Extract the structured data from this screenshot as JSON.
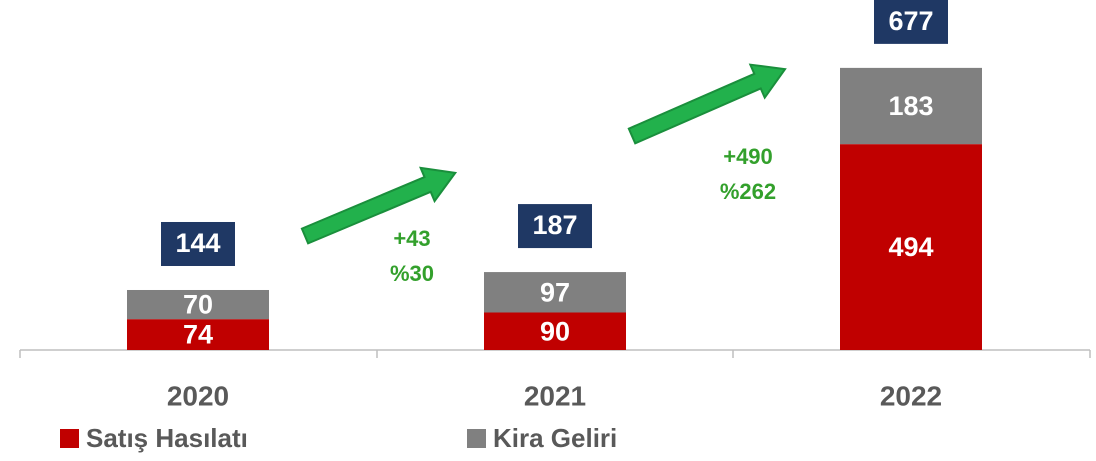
{
  "chart_data": {
    "type": "stacked_bar",
    "categories": [
      "2020",
      "2021",
      "2022"
    ],
    "series": [
      {
        "name": "Satış Hasılatı",
        "color": "#c00000",
        "values": [
          74,
          90,
          494
        ]
      },
      {
        "name": "Kira Geliri",
        "color": "#808080",
        "values": [
          70,
          97,
          183
        ]
      }
    ],
    "totals": [
      144,
      187,
      677
    ],
    "total_color": "#1f3864",
    "annotations": [
      {
        "change": "+43",
        "percent": "%30"
      },
      {
        "change": "+490",
        "percent": "%262"
      }
    ],
    "annotation_color": "#33a02c",
    "ylim": [
      0,
      700
    ]
  }
}
